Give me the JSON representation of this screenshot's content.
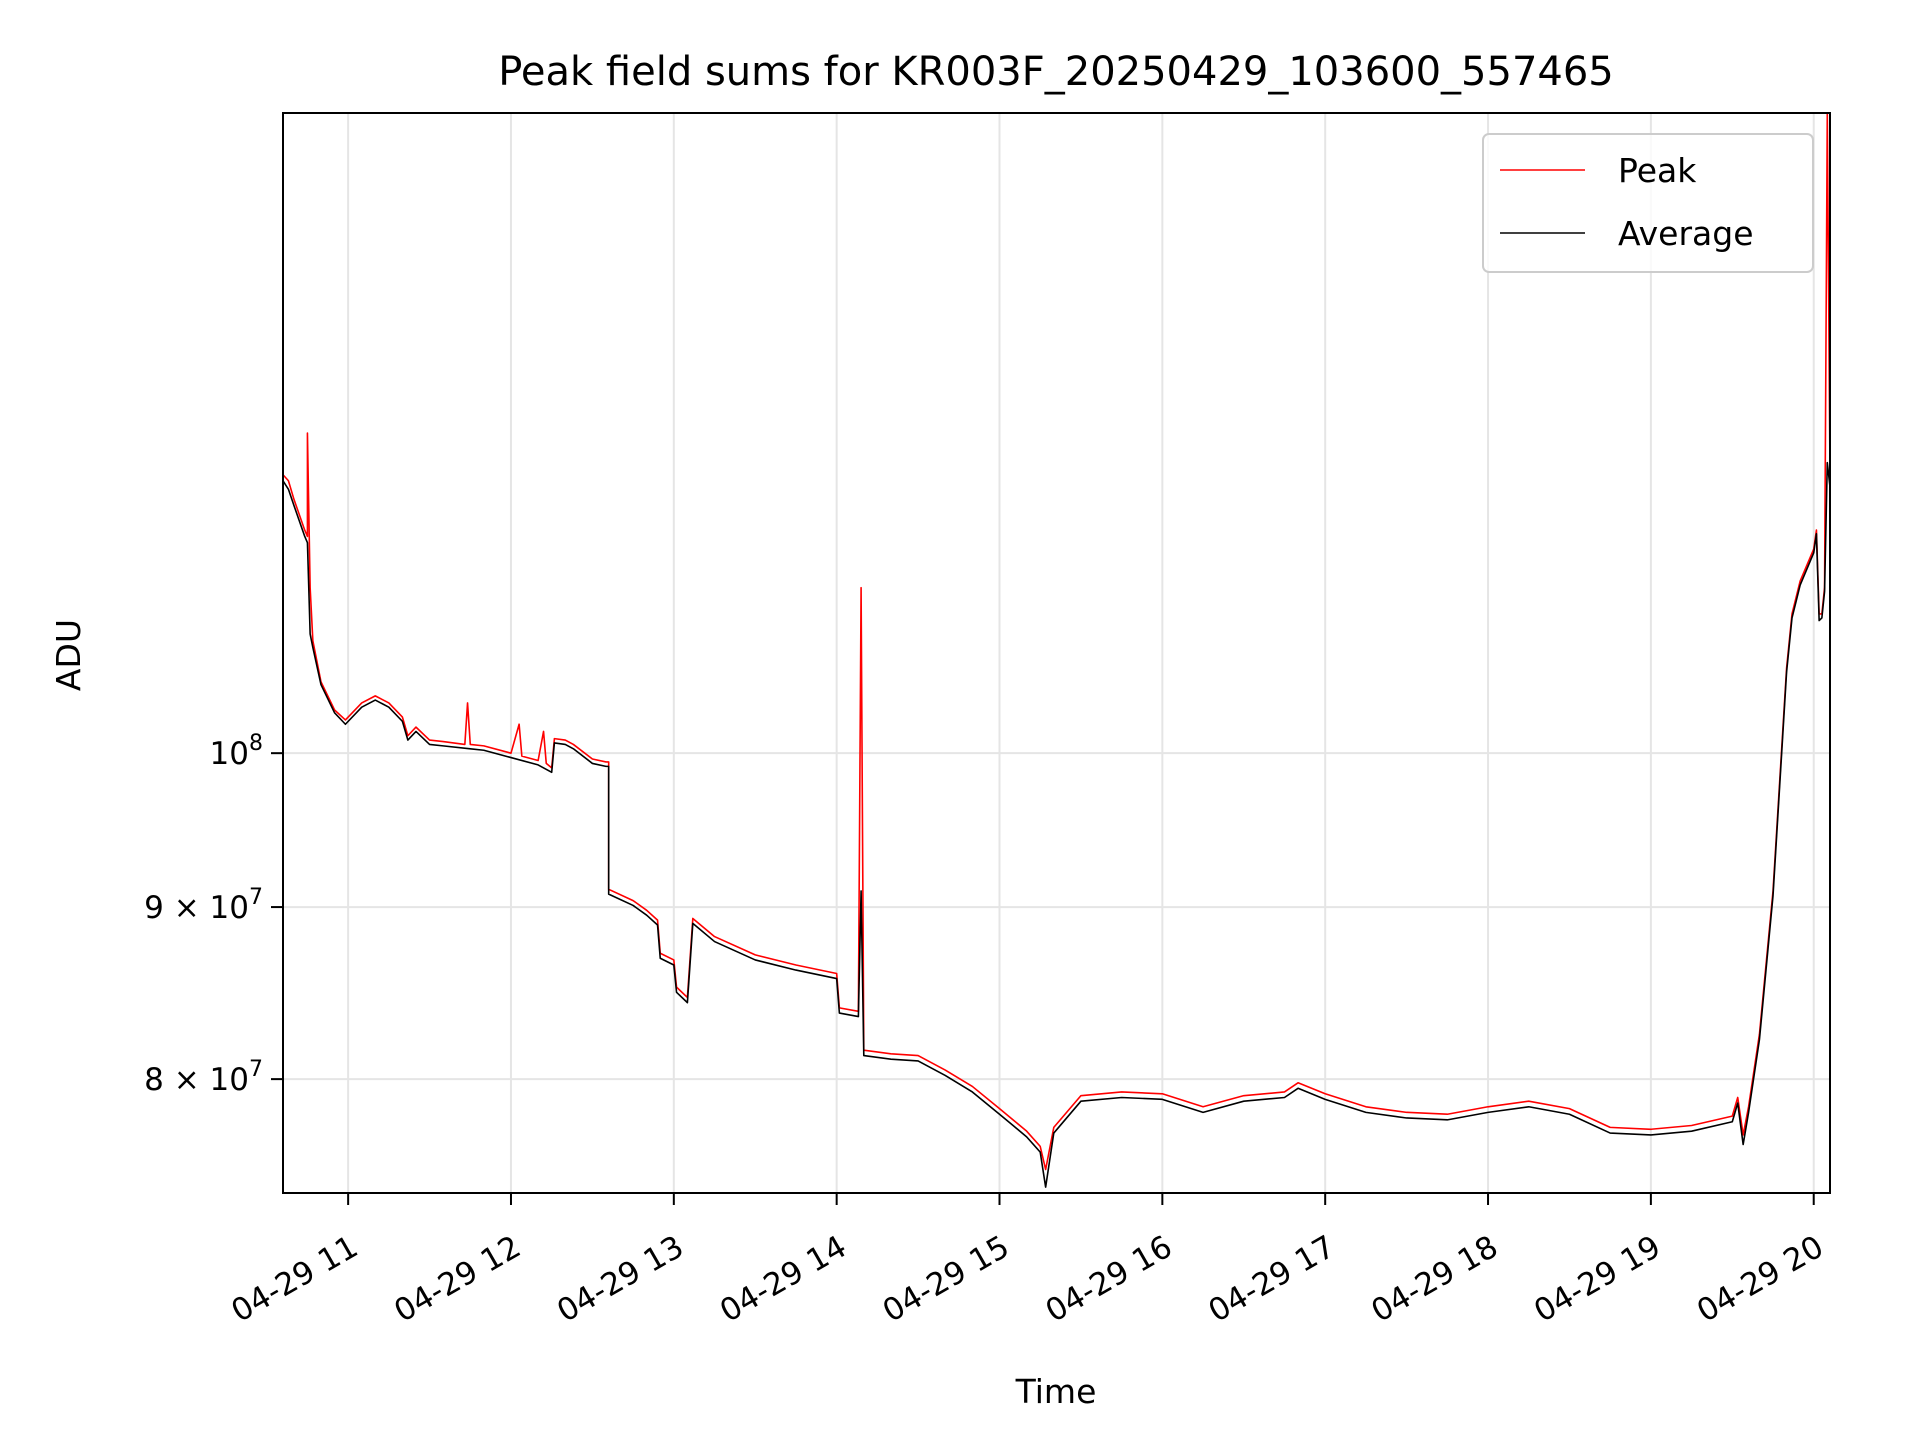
{
  "chart_data": {
    "type": "line",
    "title": "Peak field sums for KR003F_20250429_103600_557465",
    "xlabel": "Time",
    "ylabel": "ADU",
    "y_scale": "log",
    "grid": true,
    "legend_position": "top-right",
    "xlim": [
      "2025-04-29 10:36",
      "2025-04-29 20:06"
    ],
    "ylim": [
      74000000,
      155000000
    ],
    "x_ticks": [
      "2025-04-29 11:00",
      "2025-04-29 12:00",
      "2025-04-29 13:00",
      "2025-04-29 14:00",
      "2025-04-29 15:00",
      "2025-04-29 16:00",
      "2025-04-29 17:00",
      "2025-04-29 18:00",
      "2025-04-29 19:00",
      "2025-04-29 20:00"
    ],
    "x_tick_labels": [
      "04-29 11",
      "04-29 12",
      "04-29 13",
      "04-29 14",
      "04-29 15",
      "04-29 16",
      "04-29 17",
      "04-29 18",
      "04-29 19",
      "04-29 20"
    ],
    "y_ticks": [
      {
        "value": 100000000,
        "mantissa": "",
        "exponent": "8"
      },
      {
        "value": 90000000,
        "mantissa": "9",
        "exponent": "7"
      },
      {
        "value": 80000000,
        "mantissa": "8",
        "exponent": "7"
      }
    ],
    "series": [
      {
        "name": "Peak",
        "color": "#ff0000",
        "points": [
          [
            "2025-04-29 10:36",
            121000000
          ],
          [
            "2025-04-29 10:38",
            120500000
          ],
          [
            "2025-04-29 10:40",
            119000000
          ],
          [
            "2025-04-29 10:44",
            116500000
          ],
          [
            "2025-04-29 10:45",
            116000000
          ],
          [
            "2025-04-29 10:45",
            124500000
          ],
          [
            "2025-04-29 10:46",
            112000000
          ],
          [
            "2025-04-29 10:47",
            108000000
          ],
          [
            "2025-04-29 10:50",
            105000000
          ],
          [
            "2025-04-29 10:55",
            103000000
          ],
          [
            "2025-04-29 10:59",
            102300000
          ],
          [
            "2025-04-29 11:05",
            103500000
          ],
          [
            "2025-04-29 11:10",
            104000000
          ],
          [
            "2025-04-29 11:15",
            103500000
          ],
          [
            "2025-04-29 11:20",
            102500000
          ],
          [
            "2025-04-29 11:22",
            101200000
          ],
          [
            "2025-04-29 11:25",
            101800000
          ],
          [
            "2025-04-29 11:30",
            100900000
          ],
          [
            "2025-04-29 11:35",
            100800000
          ],
          [
            "2025-04-29 11:43",
            100600000
          ],
          [
            "2025-04-29 11:44",
            103500000
          ],
          [
            "2025-04-29 11:45",
            100600000
          ],
          [
            "2025-04-29 11:50",
            100500000
          ],
          [
            "2025-04-29 12:00",
            100000000
          ],
          [
            "2025-04-29 12:03",
            102000000
          ],
          [
            "2025-04-29 12:04",
            99800000
          ],
          [
            "2025-04-29 12:10",
            99500000
          ],
          [
            "2025-04-29 12:12",
            101500000
          ],
          [
            "2025-04-29 12:13",
            99300000
          ],
          [
            "2025-04-29 12:15",
            99000000
          ],
          [
            "2025-04-29 12:16",
            101000000
          ],
          [
            "2025-04-29 12:20",
            100900000
          ],
          [
            "2025-04-29 12:23",
            100600000
          ],
          [
            "2025-04-29 12:30",
            99600000
          ],
          [
            "2025-04-29 12:35",
            99400000
          ],
          [
            "2025-04-29 12:36",
            99400000
          ],
          [
            "2025-04-29 12:36",
            91100000
          ],
          [
            "2025-04-29 12:45",
            90400000
          ],
          [
            "2025-04-29 12:50",
            89800000
          ],
          [
            "2025-04-29 12:54",
            89200000
          ],
          [
            "2025-04-29 12:55",
            87200000
          ],
          [
            "2025-04-29 13:00",
            86800000
          ],
          [
            "2025-04-29 13:01",
            85200000
          ],
          [
            "2025-04-29 13:05",
            84600000
          ],
          [
            "2025-04-29 13:07",
            89300000
          ],
          [
            "2025-04-29 13:15",
            88200000
          ],
          [
            "2025-04-29 13:30",
            87100000
          ],
          [
            "2025-04-29 13:45",
            86500000
          ],
          [
            "2025-04-29 14:00",
            86000000
          ],
          [
            "2025-04-29 14:01",
            84000000
          ],
          [
            "2025-04-29 14:08",
            83800000
          ],
          [
            "2025-04-29 14:09",
            112000000
          ],
          [
            "2025-04-29 14:10",
            81600000
          ],
          [
            "2025-04-29 14:20",
            81400000
          ],
          [
            "2025-04-29 14:30",
            81300000
          ],
          [
            "2025-04-29 14:40",
            80500000
          ],
          [
            "2025-04-29 14:50",
            79600000
          ],
          [
            "2025-04-29 15:00",
            78400000
          ],
          [
            "2025-04-29 15:05",
            77800000
          ],
          [
            "2025-04-29 15:10",
            77200000
          ],
          [
            "2025-04-29 15:15",
            76400000
          ],
          [
            "2025-04-29 15:17",
            75200000
          ],
          [
            "2025-04-29 15:20",
            77400000
          ],
          [
            "2025-04-29 15:30",
            79100000
          ],
          [
            "2025-04-29 15:45",
            79300000
          ],
          [
            "2025-04-29 16:00",
            79200000
          ],
          [
            "2025-04-29 16:15",
            78500000
          ],
          [
            "2025-04-29 16:30",
            79100000
          ],
          [
            "2025-04-29 16:45",
            79300000
          ],
          [
            "2025-04-29 16:50",
            79800000
          ],
          [
            "2025-04-29 17:00",
            79200000
          ],
          [
            "2025-04-29 17:15",
            78500000
          ],
          [
            "2025-04-29 17:30",
            78200000
          ],
          [
            "2025-04-29 17:45",
            78100000
          ],
          [
            "2025-04-29 18:00",
            78500000
          ],
          [
            "2025-04-29 18:15",
            78800000
          ],
          [
            "2025-04-29 18:30",
            78400000
          ],
          [
            "2025-04-29 18:45",
            77400000
          ],
          [
            "2025-04-29 19:00",
            77300000
          ],
          [
            "2025-04-29 19:15",
            77500000
          ],
          [
            "2025-04-29 19:30",
            78000000
          ],
          [
            "2025-04-29 19:32",
            79000000
          ],
          [
            "2025-04-29 19:34",
            77000000
          ],
          [
            "2025-04-29 19:36",
            78500000
          ],
          [
            "2025-04-29 19:40",
            82500000
          ],
          [
            "2025-04-29 19:45",
            91000000
          ],
          [
            "2025-04-29 19:50",
            106000000
          ],
          [
            "2025-04-29 19:52",
            110000000
          ],
          [
            "2025-04-29 19:55",
            112500000
          ],
          [
            "2025-04-29 20:00",
            115000000
          ],
          [
            "2025-04-29 20:01",
            116500000
          ],
          [
            "2025-04-29 20:02",
            110000000
          ],
          [
            "2025-04-29 20:03",
            110000000
          ],
          [
            "2025-04-29 20:04",
            112000000
          ],
          [
            "2025-04-29 20:05",
            155000000
          ],
          [
            "2025-04-29 20:06",
            121000000
          ]
        ]
      },
      {
        "name": "Average",
        "color": "#000000",
        "points": [
          [
            "2025-04-29 10:36",
            120500000
          ],
          [
            "2025-04-29 10:38",
            119800000
          ],
          [
            "2025-04-29 10:40",
            118500000
          ],
          [
            "2025-04-29 10:44",
            116000000
          ],
          [
            "2025-04-29 10:45",
            115500000
          ],
          [
            "2025-04-29 10:46",
            108500000
          ],
          [
            "2025-04-29 10:47",
            107500000
          ],
          [
            "2025-04-29 10:50",
            104800000
          ],
          [
            "2025-04-29 10:55",
            102800000
          ],
          [
            "2025-04-29 10:59",
            102000000
          ],
          [
            "2025-04-29 11:05",
            103200000
          ],
          [
            "2025-04-29 11:10",
            103700000
          ],
          [
            "2025-04-29 11:15",
            103200000
          ],
          [
            "2025-04-29 11:20",
            102200000
          ],
          [
            "2025-04-29 11:22",
            100900000
          ],
          [
            "2025-04-29 11:25",
            101500000
          ],
          [
            "2025-04-29 11:30",
            100600000
          ],
          [
            "2025-04-29 11:35",
            100500000
          ],
          [
            "2025-04-29 11:45",
            100300000
          ],
          [
            "2025-04-29 11:50",
            100200000
          ],
          [
            "2025-04-29 12:00",
            99700000
          ],
          [
            "2025-04-29 12:10",
            99200000
          ],
          [
            "2025-04-29 12:15",
            98700000
          ],
          [
            "2025-04-29 12:16",
            100700000
          ],
          [
            "2025-04-29 12:20",
            100600000
          ],
          [
            "2025-04-29 12:23",
            100300000
          ],
          [
            "2025-04-29 12:30",
            99300000
          ],
          [
            "2025-04-29 12:35",
            99100000
          ],
          [
            "2025-04-29 12:36",
            99100000
          ],
          [
            "2025-04-29 12:36",
            90800000
          ],
          [
            "2025-04-29 12:45",
            90100000
          ],
          [
            "2025-04-29 12:50",
            89500000
          ],
          [
            "2025-04-29 12:54",
            88900000
          ],
          [
            "2025-04-29 12:55",
            86900000
          ],
          [
            "2025-04-29 13:00",
            86500000
          ],
          [
            "2025-04-29 13:01",
            84900000
          ],
          [
            "2025-04-29 13:05",
            84300000
          ],
          [
            "2025-04-29 13:07",
            89000000
          ],
          [
            "2025-04-29 13:15",
            87900000
          ],
          [
            "2025-04-29 13:30",
            86800000
          ],
          [
            "2025-04-29 13:45",
            86200000
          ],
          [
            "2025-04-29 14:00",
            85700000
          ],
          [
            "2025-04-29 14:01",
            83700000
          ],
          [
            "2025-04-29 14:08",
            83500000
          ],
          [
            "2025-04-29 14:09",
            91000000
          ],
          [
            "2025-04-29 14:10",
            81300000
          ],
          [
            "2025-04-29 14:20",
            81100000
          ],
          [
            "2025-04-29 14:30",
            81000000
          ],
          [
            "2025-04-29 14:40",
            80200000
          ],
          [
            "2025-04-29 14:50",
            79300000
          ],
          [
            "2025-04-29 15:00",
            78100000
          ],
          [
            "2025-04-29 15:05",
            77500000
          ],
          [
            "2025-04-29 15:10",
            76900000
          ],
          [
            "2025-04-29 15:15",
            76100000
          ],
          [
            "2025-04-29 15:17",
            74300000
          ],
          [
            "2025-04-29 15:20",
            77100000
          ],
          [
            "2025-04-29 15:30",
            78800000
          ],
          [
            "2025-04-29 15:45",
            79000000
          ],
          [
            "2025-04-29 16:00",
            78900000
          ],
          [
            "2025-04-29 16:15",
            78200000
          ],
          [
            "2025-04-29 16:30",
            78800000
          ],
          [
            "2025-04-29 16:45",
            79000000
          ],
          [
            "2025-04-29 16:50",
            79500000
          ],
          [
            "2025-04-29 17:00",
            78900000
          ],
          [
            "2025-04-29 17:15",
            78200000
          ],
          [
            "2025-04-29 17:30",
            77900000
          ],
          [
            "2025-04-29 17:45",
            77800000
          ],
          [
            "2025-04-29 18:00",
            78200000
          ],
          [
            "2025-04-29 18:15",
            78500000
          ],
          [
            "2025-04-29 18:30",
            78100000
          ],
          [
            "2025-04-29 18:45",
            77100000
          ],
          [
            "2025-04-29 19:00",
            77000000
          ],
          [
            "2025-04-29 19:15",
            77200000
          ],
          [
            "2025-04-29 19:30",
            77700000
          ],
          [
            "2025-04-29 19:32",
            78700000
          ],
          [
            "2025-04-29 19:34",
            76500000
          ],
          [
            "2025-04-29 19:36",
            78200000
          ],
          [
            "2025-04-29 19:40",
            82200000
          ],
          [
            "2025-04-29 19:45",
            90700000
          ],
          [
            "2025-04-29 19:50",
            105700000
          ],
          [
            "2025-04-29 19:52",
            109700000
          ],
          [
            "2025-04-29 19:55",
            112200000
          ],
          [
            "2025-04-29 20:00",
            114700000
          ],
          [
            "2025-04-29 20:01",
            116200000
          ],
          [
            "2025-04-29 20:02",
            109500000
          ],
          [
            "2025-04-29 20:03",
            109700000
          ],
          [
            "2025-04-29 20:04",
            111700000
          ],
          [
            "2025-04-29 20:05",
            122000000
          ],
          [
            "2025-04-29 20:06",
            120000000
          ]
        ]
      }
    ]
  }
}
